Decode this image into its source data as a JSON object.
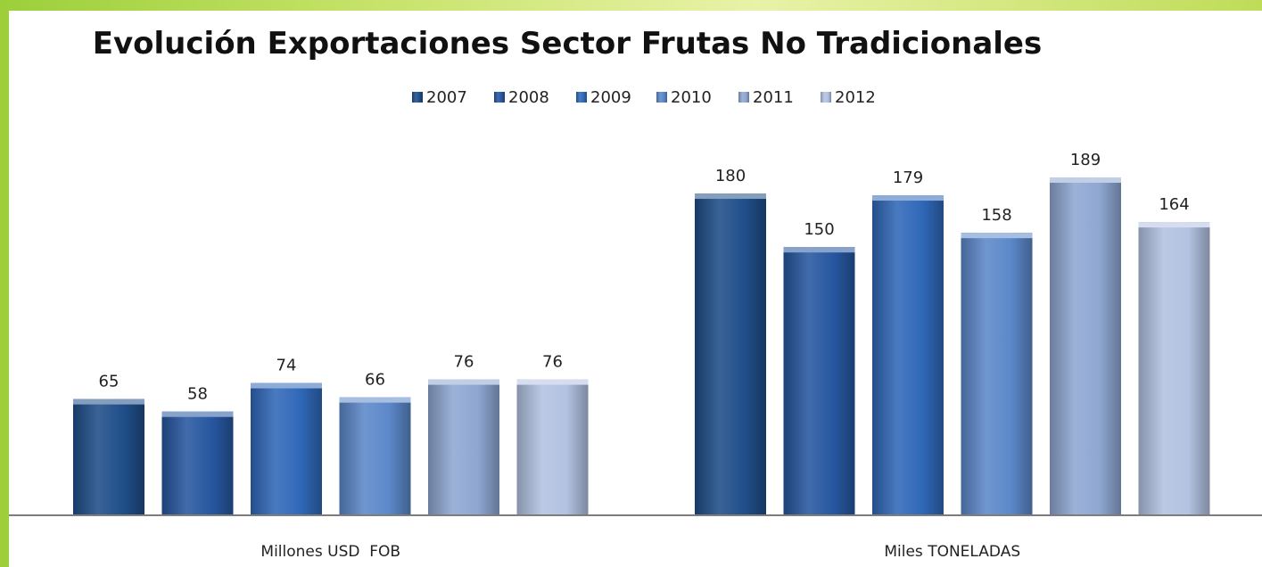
{
  "chart_data": {
    "type": "bar",
    "title": "Evolución Exportaciones Sector Frutas No Tradicionales",
    "categories": [
      "Millones USD  FOB",
      "Miles TONELADAS"
    ],
    "series": [
      {
        "name": "2007",
        "values": [
          65,
          180
        ],
        "color": "#1f4e89"
      },
      {
        "name": "2008",
        "values": [
          58,
          150
        ],
        "color": "#2757a0"
      },
      {
        "name": "2009",
        "values": [
          74,
          179
        ],
        "color": "#3068b8"
      },
      {
        "name": "2010",
        "values": [
          66,
          158
        ],
        "color": "#5c88c9"
      },
      {
        "name": "2011",
        "values": [
          76,
          189
        ],
        "color": "#8ea7d2"
      },
      {
        "name": "2012",
        "values": [
          76,
          164
        ],
        "color": "#b3c2e2"
      }
    ],
    "ylim": [
      0,
      200
    ],
    "grid": false,
    "legend": "top-center"
  }
}
